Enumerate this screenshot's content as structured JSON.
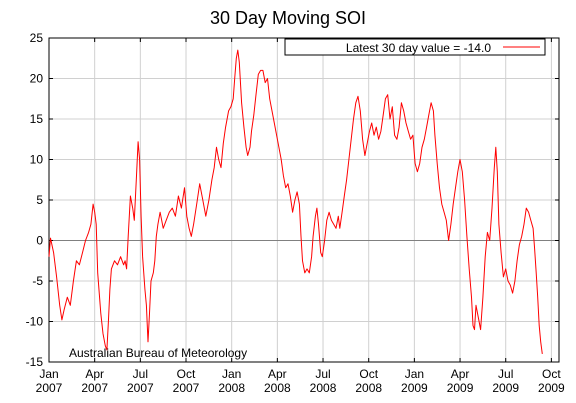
{
  "chart_data": {
    "type": "line",
    "title": "30 Day Moving SOI",
    "legend": {
      "label": "Latest 30 day value = -14.0",
      "position": "top-right"
    },
    "credit": "Australian Bureau of Meteorology",
    "ylim": [
      -15,
      25
    ],
    "yticks": [
      -15,
      -10,
      -5,
      0,
      5,
      10,
      15,
      20,
      25
    ],
    "xlim": [
      0,
      33.5
    ],
    "xticks": [
      {
        "x": 0,
        "month": "Jan",
        "year": "2007"
      },
      {
        "x": 3,
        "month": "Apr",
        "year": "2007"
      },
      {
        "x": 6,
        "month": "Jul",
        "year": "2007"
      },
      {
        "x": 9,
        "month": "Oct",
        "year": "2007"
      },
      {
        "x": 12,
        "month": "Jan",
        "year": "2008"
      },
      {
        "x": 15,
        "month": "Apr",
        "year": "2008"
      },
      {
        "x": 18,
        "month": "Jul",
        "year": "2008"
      },
      {
        "x": 21,
        "month": "Oct",
        "year": "2008"
      },
      {
        "x": 24,
        "month": "Jan",
        "year": "2009"
      },
      {
        "x": 27,
        "month": "Apr",
        "year": "2009"
      },
      {
        "x": 30,
        "month": "Jul",
        "year": "2009"
      },
      {
        "x": 33,
        "month": "Oct",
        "year": "2009"
      }
    ],
    "grid": true,
    "zero_line": true,
    "series": [
      {
        "color": "#ff0000",
        "points": [
          [
            0.0,
            -2.0
          ],
          [
            0.1,
            0.3
          ],
          [
            0.3,
            -1.5
          ],
          [
            0.5,
            -4.5
          ],
          [
            0.7,
            -8.0
          ],
          [
            0.85,
            -9.8
          ],
          [
            1.0,
            -8.5
          ],
          [
            1.2,
            -7.0
          ],
          [
            1.4,
            -8.0
          ],
          [
            1.6,
            -5.0
          ],
          [
            1.8,
            -2.5
          ],
          [
            2.0,
            -3.0
          ],
          [
            2.2,
            -1.5
          ],
          [
            2.4,
            0.0
          ],
          [
            2.6,
            1.0
          ],
          [
            2.75,
            2.0
          ],
          [
            2.9,
            4.5
          ],
          [
            3.0,
            3.5
          ],
          [
            3.1,
            2.0
          ],
          [
            3.2,
            -4.0
          ],
          [
            3.4,
            -9.0
          ],
          [
            3.55,
            -11.5
          ],
          [
            3.7,
            -13.0
          ],
          [
            3.8,
            -13.5
          ],
          [
            3.9,
            -10.0
          ],
          [
            4.0,
            -6.0
          ],
          [
            4.1,
            -3.5
          ],
          [
            4.3,
            -2.5
          ],
          [
            4.5,
            -3.0
          ],
          [
            4.7,
            -2.0
          ],
          [
            4.9,
            -3.0
          ],
          [
            5.0,
            -2.5
          ],
          [
            5.1,
            -3.5
          ],
          [
            5.2,
            0.5
          ],
          [
            5.35,
            5.5
          ],
          [
            5.5,
            4.0
          ],
          [
            5.6,
            2.5
          ],
          [
            5.75,
            8.0
          ],
          [
            5.85,
            12.2
          ],
          [
            5.95,
            10.0
          ],
          [
            6.05,
            3.0
          ],
          [
            6.15,
            -2.0
          ],
          [
            6.3,
            -6.0
          ],
          [
            6.4,
            -8.0
          ],
          [
            6.5,
            -12.5
          ],
          [
            6.6,
            -9.0
          ],
          [
            6.7,
            -5.0
          ],
          [
            6.85,
            -4.0
          ],
          [
            6.95,
            -2.5
          ],
          [
            7.05,
            0.5
          ],
          [
            7.15,
            2.0
          ],
          [
            7.3,
            3.5
          ],
          [
            7.4,
            2.5
          ],
          [
            7.5,
            1.5
          ],
          [
            7.7,
            2.5
          ],
          [
            7.9,
            3.5
          ],
          [
            8.1,
            4.0
          ],
          [
            8.3,
            3.0
          ],
          [
            8.5,
            5.5
          ],
          [
            8.7,
            4.0
          ],
          [
            8.9,
            6.5
          ],
          [
            9.05,
            3.0
          ],
          [
            9.2,
            1.5
          ],
          [
            9.35,
            0.5
          ],
          [
            9.5,
            2.0
          ],
          [
            9.7,
            4.5
          ],
          [
            9.9,
            7.0
          ],
          [
            10.1,
            5.0
          ],
          [
            10.3,
            3.0
          ],
          [
            10.5,
            5.0
          ],
          [
            10.7,
            7.5
          ],
          [
            10.85,
            9.0
          ],
          [
            11.0,
            11.5
          ],
          [
            11.15,
            10.0
          ],
          [
            11.3,
            9.0
          ],
          [
            11.45,
            12.0
          ],
          [
            11.6,
            14.0
          ],
          [
            11.8,
            16.0
          ],
          [
            11.95,
            16.5
          ],
          [
            12.1,
            17.5
          ],
          [
            12.2,
            20.0
          ],
          [
            12.3,
            22.5
          ],
          [
            12.4,
            23.5
          ],
          [
            12.5,
            22.0
          ],
          [
            12.65,
            17.0
          ],
          [
            12.8,
            14.0
          ],
          [
            12.95,
            11.5
          ],
          [
            13.05,
            10.5
          ],
          [
            13.2,
            11.5
          ],
          [
            13.3,
            13.5
          ],
          [
            13.45,
            15.5
          ],
          [
            13.6,
            18.0
          ],
          [
            13.75,
            20.5
          ],
          [
            13.9,
            21.0
          ],
          [
            14.05,
            21.0
          ],
          [
            14.2,
            19.5
          ],
          [
            14.35,
            20.0
          ],
          [
            14.5,
            17.5
          ],
          [
            14.65,
            16.0
          ],
          [
            14.8,
            14.5
          ],
          [
            14.95,
            13.0
          ],
          [
            15.1,
            11.5
          ],
          [
            15.25,
            10.0
          ],
          [
            15.4,
            8.0
          ],
          [
            15.55,
            6.5
          ],
          [
            15.7,
            7.0
          ],
          [
            15.85,
            5.5
          ],
          [
            16.0,
            3.5
          ],
          [
            16.15,
            5.0
          ],
          [
            16.3,
            6.0
          ],
          [
            16.45,
            4.5
          ],
          [
            16.55,
            0.5
          ],
          [
            16.65,
            -2.5
          ],
          [
            16.8,
            -4.0
          ],
          [
            16.95,
            -3.5
          ],
          [
            17.1,
            -4.0
          ],
          [
            17.25,
            -2.0
          ],
          [
            17.35,
            0.5
          ],
          [
            17.5,
            3.0
          ],
          [
            17.6,
            4.0
          ],
          [
            17.7,
            2.0
          ],
          [
            17.85,
            -1.5
          ],
          [
            17.95,
            -2.0
          ],
          [
            18.1,
            0.0
          ],
          [
            18.25,
            2.5
          ],
          [
            18.4,
            3.5
          ],
          [
            18.55,
            2.5
          ],
          [
            18.7,
            2.0
          ],
          [
            18.85,
            1.5
          ],
          [
            19.0,
            3.0
          ],
          [
            19.1,
            1.5
          ],
          [
            19.25,
            3.5
          ],
          [
            19.4,
            5.5
          ],
          [
            19.55,
            7.5
          ],
          [
            19.7,
            10.0
          ],
          [
            19.85,
            12.5
          ],
          [
            20.0,
            15.0
          ],
          [
            20.15,
            17.0
          ],
          [
            20.3,
            17.8
          ],
          [
            20.45,
            16.0
          ],
          [
            20.6,
            12.5
          ],
          [
            20.75,
            10.5
          ],
          [
            20.9,
            12.0
          ],
          [
            21.05,
            13.5
          ],
          [
            21.2,
            14.5
          ],
          [
            21.35,
            13.0
          ],
          [
            21.5,
            14.0
          ],
          [
            21.65,
            12.5
          ],
          [
            21.8,
            13.5
          ],
          [
            21.95,
            15.5
          ],
          [
            22.1,
            17.5
          ],
          [
            22.25,
            18.0
          ],
          [
            22.4,
            15.0
          ],
          [
            22.55,
            16.5
          ],
          [
            22.7,
            13.0
          ],
          [
            22.85,
            12.5
          ],
          [
            23.0,
            14.0
          ],
          [
            23.15,
            17.0
          ],
          [
            23.3,
            16.0
          ],
          [
            23.45,
            14.5
          ],
          [
            23.6,
            13.5
          ],
          [
            23.75,
            12.5
          ],
          [
            23.9,
            13.0
          ],
          [
            24.05,
            9.5
          ],
          [
            24.2,
            8.5
          ],
          [
            24.35,
            9.5
          ],
          [
            24.5,
            11.5
          ],
          [
            24.65,
            12.5
          ],
          [
            24.8,
            14.0
          ],
          [
            24.95,
            15.5
          ],
          [
            25.1,
            17.0
          ],
          [
            25.25,
            16.0
          ],
          [
            25.35,
            13.0
          ],
          [
            25.5,
            9.5
          ],
          [
            25.65,
            6.5
          ],
          [
            25.8,
            4.5
          ],
          [
            25.95,
            3.5
          ],
          [
            26.1,
            2.5
          ],
          [
            26.25,
            0.0
          ],
          [
            26.4,
            2.0
          ],
          [
            26.55,
            4.5
          ],
          [
            26.7,
            6.5
          ],
          [
            26.85,
            8.5
          ],
          [
            27.0,
            10.0
          ],
          [
            27.15,
            8.5
          ],
          [
            27.3,
            5.0
          ],
          [
            27.45,
            0.5
          ],
          [
            27.6,
            -3.5
          ],
          [
            27.75,
            -7.0
          ],
          [
            27.85,
            -10.5
          ],
          [
            27.95,
            -11.0
          ],
          [
            28.05,
            -8.0
          ],
          [
            28.2,
            -9.5
          ],
          [
            28.35,
            -11.0
          ],
          [
            28.5,
            -7.0
          ],
          [
            28.65,
            -2.0
          ],
          [
            28.8,
            1.0
          ],
          [
            28.95,
            0.0
          ],
          [
            29.1,
            4.0
          ],
          [
            29.25,
            9.0
          ],
          [
            29.35,
            11.5
          ],
          [
            29.45,
            8.5
          ],
          [
            29.55,
            2.0
          ],
          [
            29.7,
            -1.5
          ],
          [
            29.85,
            -4.5
          ],
          [
            30.0,
            -3.5
          ],
          [
            30.15,
            -5.0
          ],
          [
            30.3,
            -5.5
          ],
          [
            30.45,
            -6.5
          ],
          [
            30.6,
            -5.0
          ],
          [
            30.75,
            -2.5
          ],
          [
            30.9,
            -0.5
          ],
          [
            31.05,
            0.5
          ],
          [
            31.2,
            2.0
          ],
          [
            31.35,
            4.0
          ],
          [
            31.5,
            3.5
          ],
          [
            31.65,
            2.5
          ],
          [
            31.8,
            1.5
          ],
          [
            31.9,
            -1.0
          ],
          [
            32.0,
            -4.0
          ],
          [
            32.1,
            -7.0
          ],
          [
            32.2,
            -10.5
          ],
          [
            32.3,
            -12.5
          ],
          [
            32.4,
            -14.0
          ]
        ]
      }
    ]
  }
}
